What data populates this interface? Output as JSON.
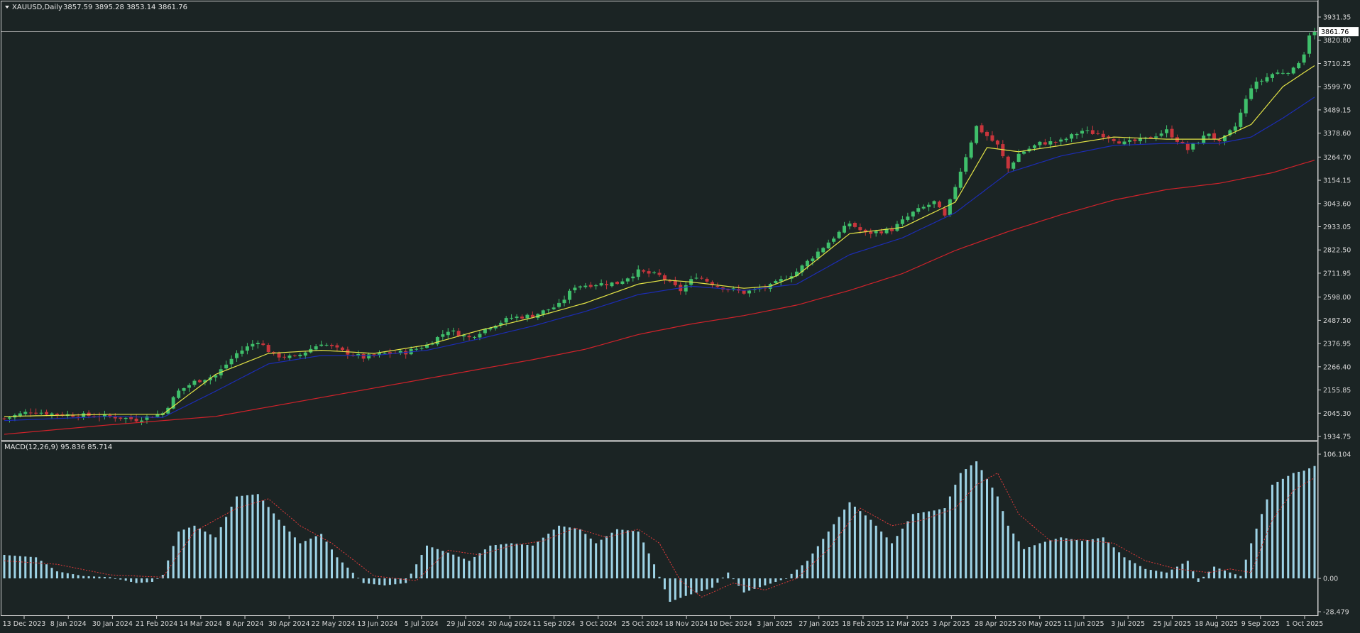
{
  "window": {
    "symbol_timeframe": "XAUUSD,Daily",
    "ohlc_readout": "3857.59 3895.28 3853.14 3861.76"
  },
  "macd_panel": {
    "label": "MACD(12,26,9) 95.836 85.714"
  },
  "colors": {
    "background": "#1b2424",
    "bull_candle": "#3fbf6b",
    "bear_candle": "#c8353c",
    "ma_fast": "#e3e346",
    "ma_mid": "#1c2cb4",
    "ma_slow": "#d0222a",
    "macd_hist": "#9ed3e6",
    "macd_signal": "#e03a3a",
    "axis_text": "#d8d8d8"
  },
  "chart_data": [
    {
      "type": "candlestick",
      "title": "XAUUSD,Daily",
      "y_axis_ticks": [
        "3931.35",
        "3820.80",
        "3710.25",
        "3599.70",
        "3489.15",
        "3378.60",
        "3264.70",
        "3154.15",
        "3043.60",
        "2933.05",
        "2822.50",
        "2711.95",
        "2598.00",
        "2487.50",
        "2376.95",
        "2266.40",
        "2155.85",
        "2045.30",
        "1934.75"
      ],
      "ylim": [
        1934.75,
        3931.35
      ],
      "current_price_label": "3861.76",
      "current_price": 3861.76,
      "x_axis_ticks": [
        "13 Dec 2023",
        "8 Jan 2024",
        "30 Jan 2024",
        "21 Feb 2024",
        "14 Mar 2024",
        "8 Apr 2024",
        "30 Apr 2024",
        "22 May 2024",
        "13 Jun 2024",
        "5 Jul 2024",
        "29 Jul 2024",
        "20 Aug 2024",
        "11 Sep 2024",
        "3 Oct 2024",
        "25 Oct 2024",
        "18 Nov 2024",
        "10 Dec 2024",
        "3 Jan 2025",
        "27 Jan 2025",
        "18 Feb 2025",
        "12 Mar 2025",
        "3 Apr 2025",
        "28 Apr 2025",
        "20 May 2025",
        "11 Jun 2025",
        "3 Jul 2025",
        "25 Jul 2025",
        "18 Aug 2025",
        "9 Sep 2025",
        "1 Oct 2025"
      ],
      "close_path": [
        [
          0,
          2020
        ],
        [
          5,
          2055
        ],
        [
          10,
          2040
        ],
        [
          15,
          2035
        ],
        [
          20,
          2030
        ],
        [
          25,
          2015
        ],
        [
          30,
          2045
        ],
        [
          33,
          2150
        ],
        [
          36,
          2195
        ],
        [
          40,
          2225
        ],
        [
          44,
          2330
        ],
        [
          48,
          2390
        ],
        [
          51,
          2320
        ],
        [
          55,
          2310
        ],
        [
          60,
          2380
        ],
        [
          64,
          2340
        ],
        [
          68,
          2310
        ],
        [
          72,
          2330
        ],
        [
          76,
          2335
        ],
        [
          80,
          2370
        ],
        [
          84,
          2440
        ],
        [
          88,
          2405
        ],
        [
          92,
          2460
        ],
        [
          96,
          2500
        ],
        [
          100,
          2510
        ],
        [
          105,
          2560
        ],
        [
          108,
          2650
        ],
        [
          112,
          2660
        ],
        [
          116,
          2665
        ],
        [
          120,
          2720
        ],
        [
          124,
          2700
        ],
        [
          128,
          2630
        ],
        [
          131,
          2700
        ],
        [
          135,
          2650
        ],
        [
          140,
          2620
        ],
        [
          145,
          2650
        ],
        [
          150,
          2720
        ],
        [
          156,
          2860
        ],
        [
          160,
          2950
        ],
        [
          163,
          2900
        ],
        [
          168,
          2920
        ],
        [
          172,
          3000
        ],
        [
          176,
          3050
        ],
        [
          178,
          2980
        ],
        [
          181,
          3200
        ],
        [
          184,
          3410
        ],
        [
          188,
          3320
        ],
        [
          190,
          3210
        ],
        [
          192,
          3280
        ],
        [
          196,
          3330
        ],
        [
          200,
          3340
        ],
        [
          204,
          3390
        ],
        [
          208,
          3370
        ],
        [
          212,
          3330
        ],
        [
          216,
          3350
        ],
        [
          220,
          3390
        ],
        [
          224,
          3300
        ],
        [
          228,
          3380
        ],
        [
          230,
          3330
        ],
        [
          233,
          3410
        ],
        [
          236,
          3600
        ],
        [
          240,
          3660
        ],
        [
          244,
          3680
        ],
        [
          246,
          3760
        ],
        [
          247,
          3850
        ],
        [
          248,
          3862
        ]
      ],
      "moving_averages": [
        {
          "name": "fast",
          "color": "#e3e346",
          "points": [
            [
              0,
              2030
            ],
            [
              20,
              2040
            ],
            [
              30,
              2040
            ],
            [
              40,
              2230
            ],
            [
              50,
              2330
            ],
            [
              60,
              2345
            ],
            [
              70,
              2330
            ],
            [
              80,
              2370
            ],
            [
              90,
              2440
            ],
            [
              100,
              2500
            ],
            [
              110,
              2570
            ],
            [
              120,
              2660
            ],
            [
              125,
              2680
            ],
            [
              130,
              2670
            ],
            [
              140,
              2640
            ],
            [
              145,
              2650
            ],
            [
              150,
              2700
            ],
            [
              160,
              2900
            ],
            [
              170,
              2930
            ],
            [
              180,
              3050
            ],
            [
              186,
              3310
            ],
            [
              192,
              3290
            ],
            [
              200,
              3320
            ],
            [
              210,
              3360
            ],
            [
              220,
              3350
            ],
            [
              230,
              3350
            ],
            [
              236,
              3420
            ],
            [
              242,
              3600
            ],
            [
              248,
              3700
            ]
          ]
        },
        {
          "name": "mid",
          "color": "#1c2cb4",
          "points": [
            [
              0,
              2010
            ],
            [
              20,
              2030
            ],
            [
              30,
              2025
            ],
            [
              40,
              2150
            ],
            [
              50,
              2280
            ],
            [
              60,
              2320
            ],
            [
              70,
              2320
            ],
            [
              80,
              2345
            ],
            [
              90,
              2400
            ],
            [
              100,
              2460
            ],
            [
              110,
              2530
            ],
            [
              120,
              2610
            ],
            [
              130,
              2650
            ],
            [
              140,
              2630
            ],
            [
              150,
              2660
            ],
            [
              160,
              2800
            ],
            [
              170,
              2880
            ],
            [
              180,
              3000
            ],
            [
              190,
              3190
            ],
            [
              200,
              3270
            ],
            [
              210,
              3320
            ],
            [
              220,
              3330
            ],
            [
              230,
              3330
            ],
            [
              236,
              3360
            ],
            [
              242,
              3450
            ],
            [
              248,
              3550
            ]
          ]
        },
        {
          "name": "slow",
          "color": "#d0222a",
          "points": [
            [
              0,
              1945
            ],
            [
              20,
              1990
            ],
            [
              40,
              2030
            ],
            [
              60,
              2120
            ],
            [
              80,
              2210
            ],
            [
              100,
              2300
            ],
            [
              110,
              2350
            ],
            [
              120,
              2420
            ],
            [
              130,
              2470
            ],
            [
              140,
              2510
            ],
            [
              150,
              2560
            ],
            [
              160,
              2630
            ],
            [
              170,
              2710
            ],
            [
              180,
              2820
            ],
            [
              190,
              2910
            ],
            [
              200,
              2990
            ],
            [
              210,
              3060
            ],
            [
              220,
              3110
            ],
            [
              230,
              3140
            ],
            [
              240,
              3190
            ],
            [
              248,
              3250
            ]
          ]
        }
      ]
    },
    {
      "type": "bar",
      "title": "MACD(12,26,9) 95.836 85.714",
      "series_names": [
        "MACD",
        "signal"
      ],
      "y_axis_ticks": [
        "106.104",
        "0.00",
        "-28.479"
      ],
      "ylim": [
        -28.479,
        106.104
      ],
      "macd_path": [
        [
          0,
          20
        ],
        [
          6,
          18
        ],
        [
          10,
          6
        ],
        [
          15,
          2
        ],
        [
          20,
          1
        ],
        [
          25,
          -4
        ],
        [
          28,
          -3
        ],
        [
          30,
          3
        ],
        [
          33,
          40
        ],
        [
          36,
          45
        ],
        [
          40,
          35
        ],
        [
          44,
          70
        ],
        [
          48,
          72
        ],
        [
          52,
          50
        ],
        [
          56,
          30
        ],
        [
          60,
          38
        ],
        [
          63,
          18
        ],
        [
          68,
          -4
        ],
        [
          72,
          -6
        ],
        [
          76,
          -4
        ],
        [
          80,
          28
        ],
        [
          84,
          22
        ],
        [
          88,
          15
        ],
        [
          92,
          28
        ],
        [
          96,
          30
        ],
        [
          100,
          28
        ],
        [
          105,
          45
        ],
        [
          109,
          42
        ],
        [
          112,
          30
        ],
        [
          116,
          42
        ],
        [
          120,
          40
        ],
        [
          123,
          12
        ],
        [
          126,
          -20
        ],
        [
          129,
          -15
        ],
        [
          134,
          -8
        ],
        [
          137,
          5
        ],
        [
          140,
          -12
        ],
        [
          144,
          -6
        ],
        [
          148,
          0
        ],
        [
          152,
          15
        ],
        [
          156,
          40
        ],
        [
          160,
          65
        ],
        [
          164,
          50
        ],
        [
          168,
          30
        ],
        [
          172,
          55
        ],
        [
          176,
          58
        ],
        [
          178,
          60
        ],
        [
          181,
          90
        ],
        [
          184,
          100
        ],
        [
          188,
          70
        ],
        [
          190,
          45
        ],
        [
          193,
          25
        ],
        [
          196,
          30
        ],
        [
          200,
          35
        ],
        [
          204,
          32
        ],
        [
          208,
          35
        ],
        [
          212,
          18
        ],
        [
          216,
          8
        ],
        [
          220,
          5
        ],
        [
          224,
          15
        ],
        [
          226,
          -3
        ],
        [
          229,
          10
        ],
        [
          232,
          5
        ],
        [
          234,
          2
        ],
        [
          236,
          30
        ],
        [
          240,
          80
        ],
        [
          244,
          90
        ],
        [
          246,
          92
        ],
        [
          248,
          96
        ]
      ],
      "signal_path": [
        [
          0,
          15
        ],
        [
          10,
          12
        ],
        [
          20,
          3
        ],
        [
          30,
          1
        ],
        [
          36,
          40
        ],
        [
          44,
          60
        ],
        [
          50,
          68
        ],
        [
          56,
          45
        ],
        [
          62,
          30
        ],
        [
          70,
          2
        ],
        [
          78,
          -2
        ],
        [
          84,
          24
        ],
        [
          90,
          20
        ],
        [
          96,
          28
        ],
        [
          102,
          32
        ],
        [
          108,
          43
        ],
        [
          114,
          35
        ],
        [
          120,
          42
        ],
        [
          124,
          30
        ],
        [
          128,
          -2
        ],
        [
          132,
          -16
        ],
        [
          138,
          -4
        ],
        [
          144,
          -10
        ],
        [
          150,
          0
        ],
        [
          156,
          25
        ],
        [
          162,
          60
        ],
        [
          168,
          45
        ],
        [
          174,
          50
        ],
        [
          180,
          60
        ],
        [
          184,
          80
        ],
        [
          188,
          90
        ],
        [
          192,
          55
        ],
        [
          198,
          32
        ],
        [
          204,
          33
        ],
        [
          210,
          30
        ],
        [
          216,
          15
        ],
        [
          222,
          8
        ],
        [
          228,
          5
        ],
        [
          232,
          8
        ],
        [
          236,
          5
        ],
        [
          240,
          50
        ],
        [
          244,
          75
        ],
        [
          248,
          86
        ]
      ]
    }
  ]
}
